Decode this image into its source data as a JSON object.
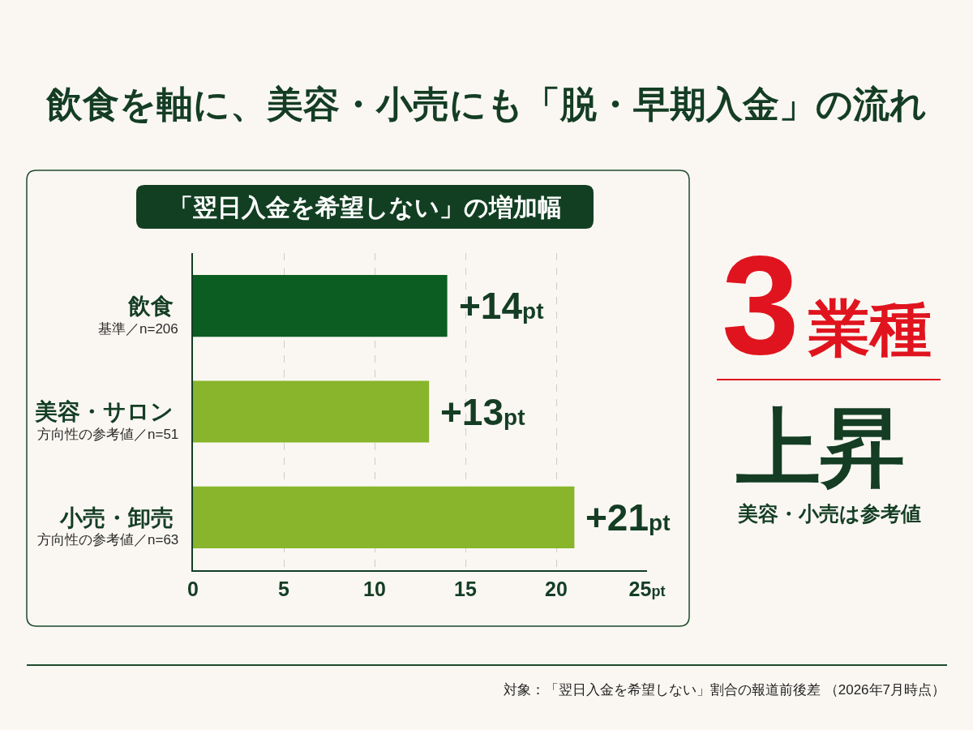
{
  "chart_data": {
    "type": "bar",
    "orientation": "horizontal",
    "title": "飲食を軸に、美容・小売にも「脱・早期入金」の流れ",
    "subtitle": "「翌日入金を希望しない」の増加幅",
    "categories": [
      "飲食",
      "美容・サロン",
      "小売・卸売"
    ],
    "values": [
      14,
      13,
      21
    ],
    "colors": [
      "#0b5d22",
      "#88b52b",
      "#88b52b"
    ],
    "value_labels": [
      "+14pt",
      "+13pt",
      "+21pt"
    ],
    "xlim": [
      0,
      25
    ],
    "xticks": [
      0,
      5,
      10,
      15,
      20,
      {
        "value": 25,
        "label": "25pt"
      }
    ],
    "grid": "x",
    "annotations": [
      "基準／n=206",
      "方向性の参考値／n=51",
      "方向性の参考値／n=63",
      "3",
      "業種",
      "上昇",
      "美容・小売は参考値",
      "対象：「翌日入金を希望しない」割合の報道前後差 （2026年7月時点）"
    ]
  }
}
